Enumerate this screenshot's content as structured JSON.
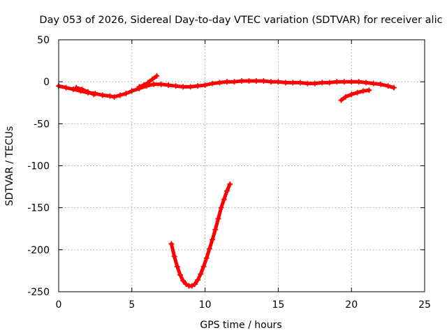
{
  "chart_data": {
    "type": "scatter",
    "title": "Day 053 of 2026, Sidereal Day-to-day VTEC variation (SDTVAR) for receiver alic",
    "xlabel": "GPS time / hours",
    "ylabel": "SDTVAR / TECUs",
    "xlim": [
      0,
      25
    ],
    "ylim": [
      -250,
      50
    ],
    "xticks": [
      0,
      5,
      10,
      15,
      20,
      25
    ],
    "yticks": [
      -250,
      -200,
      -150,
      -100,
      -50,
      0,
      50
    ],
    "grid": true,
    "marker": "plus",
    "color": "#ff0000",
    "series": [
      {
        "x": [
          0,
          0.5,
          1.0,
          1.5,
          2.0,
          2.5,
          3.0,
          3.5,
          3.8,
          4.2,
          4.6,
          5.0,
          5.5,
          6.0,
          6.5,
          7.0,
          7.5,
          8.0,
          8.5,
          9.0,
          9.5,
          10.0,
          10.5,
          11.0,
          11.5,
          12.0,
          12.5,
          13.0,
          13.5,
          14.0,
          14.5,
          15.0,
          15.5,
          16.0,
          16.5,
          17.0,
          17.5,
          18.0,
          18.5,
          19.0,
          19.5,
          20.0,
          20.5,
          21.0,
          21.5,
          22.0,
          22.5,
          22.9
        ],
        "y": [
          -5,
          -7,
          -9,
          -11,
          -13,
          -14,
          -16,
          -17,
          -18,
          -16,
          -14,
          -11,
          -8,
          -5,
          -3,
          -3,
          -4,
          -5,
          -6,
          -6,
          -5,
          -4,
          -2,
          -1,
          0,
          0,
          1,
          1,
          1,
          1,
          0,
          0,
          -1,
          -1,
          -1,
          -2,
          -2,
          -1,
          -1,
          0,
          0,
          0,
          0,
          -1,
          -2,
          -3,
          -5,
          -7
        ]
      },
      {
        "x": [
          5.5,
          5.8,
          6.1,
          6.4,
          6.7
        ],
        "y": [
          -6,
          -4,
          -1,
          3,
          7
        ]
      },
      {
        "x": [
          1.2,
          1.6,
          2.0,
          2.4
        ],
        "y": [
          -7,
          -9,
          -12,
          -15
        ]
      },
      {
        "x": [
          19.3,
          19.6,
          20.0,
          20.4,
          20.8,
          21.2
        ],
        "y": [
          -22,
          -18,
          -15,
          -13,
          -11,
          -10
        ]
      },
      {
        "x": [
          7.7,
          7.9,
          8.1,
          8.3,
          8.5,
          8.7,
          8.9,
          9.1,
          9.3,
          9.5,
          9.7,
          9.9,
          10.1,
          10.3,
          10.5,
          10.7,
          10.9,
          11.1,
          11.3,
          11.5,
          11.7
        ],
        "y": [
          -193,
          -208,
          -220,
          -230,
          -237,
          -241,
          -243,
          -243,
          -241,
          -236,
          -229,
          -220,
          -210,
          -199,
          -188,
          -176,
          -163,
          -150,
          -140,
          -130,
          -122
        ]
      }
    ]
  }
}
